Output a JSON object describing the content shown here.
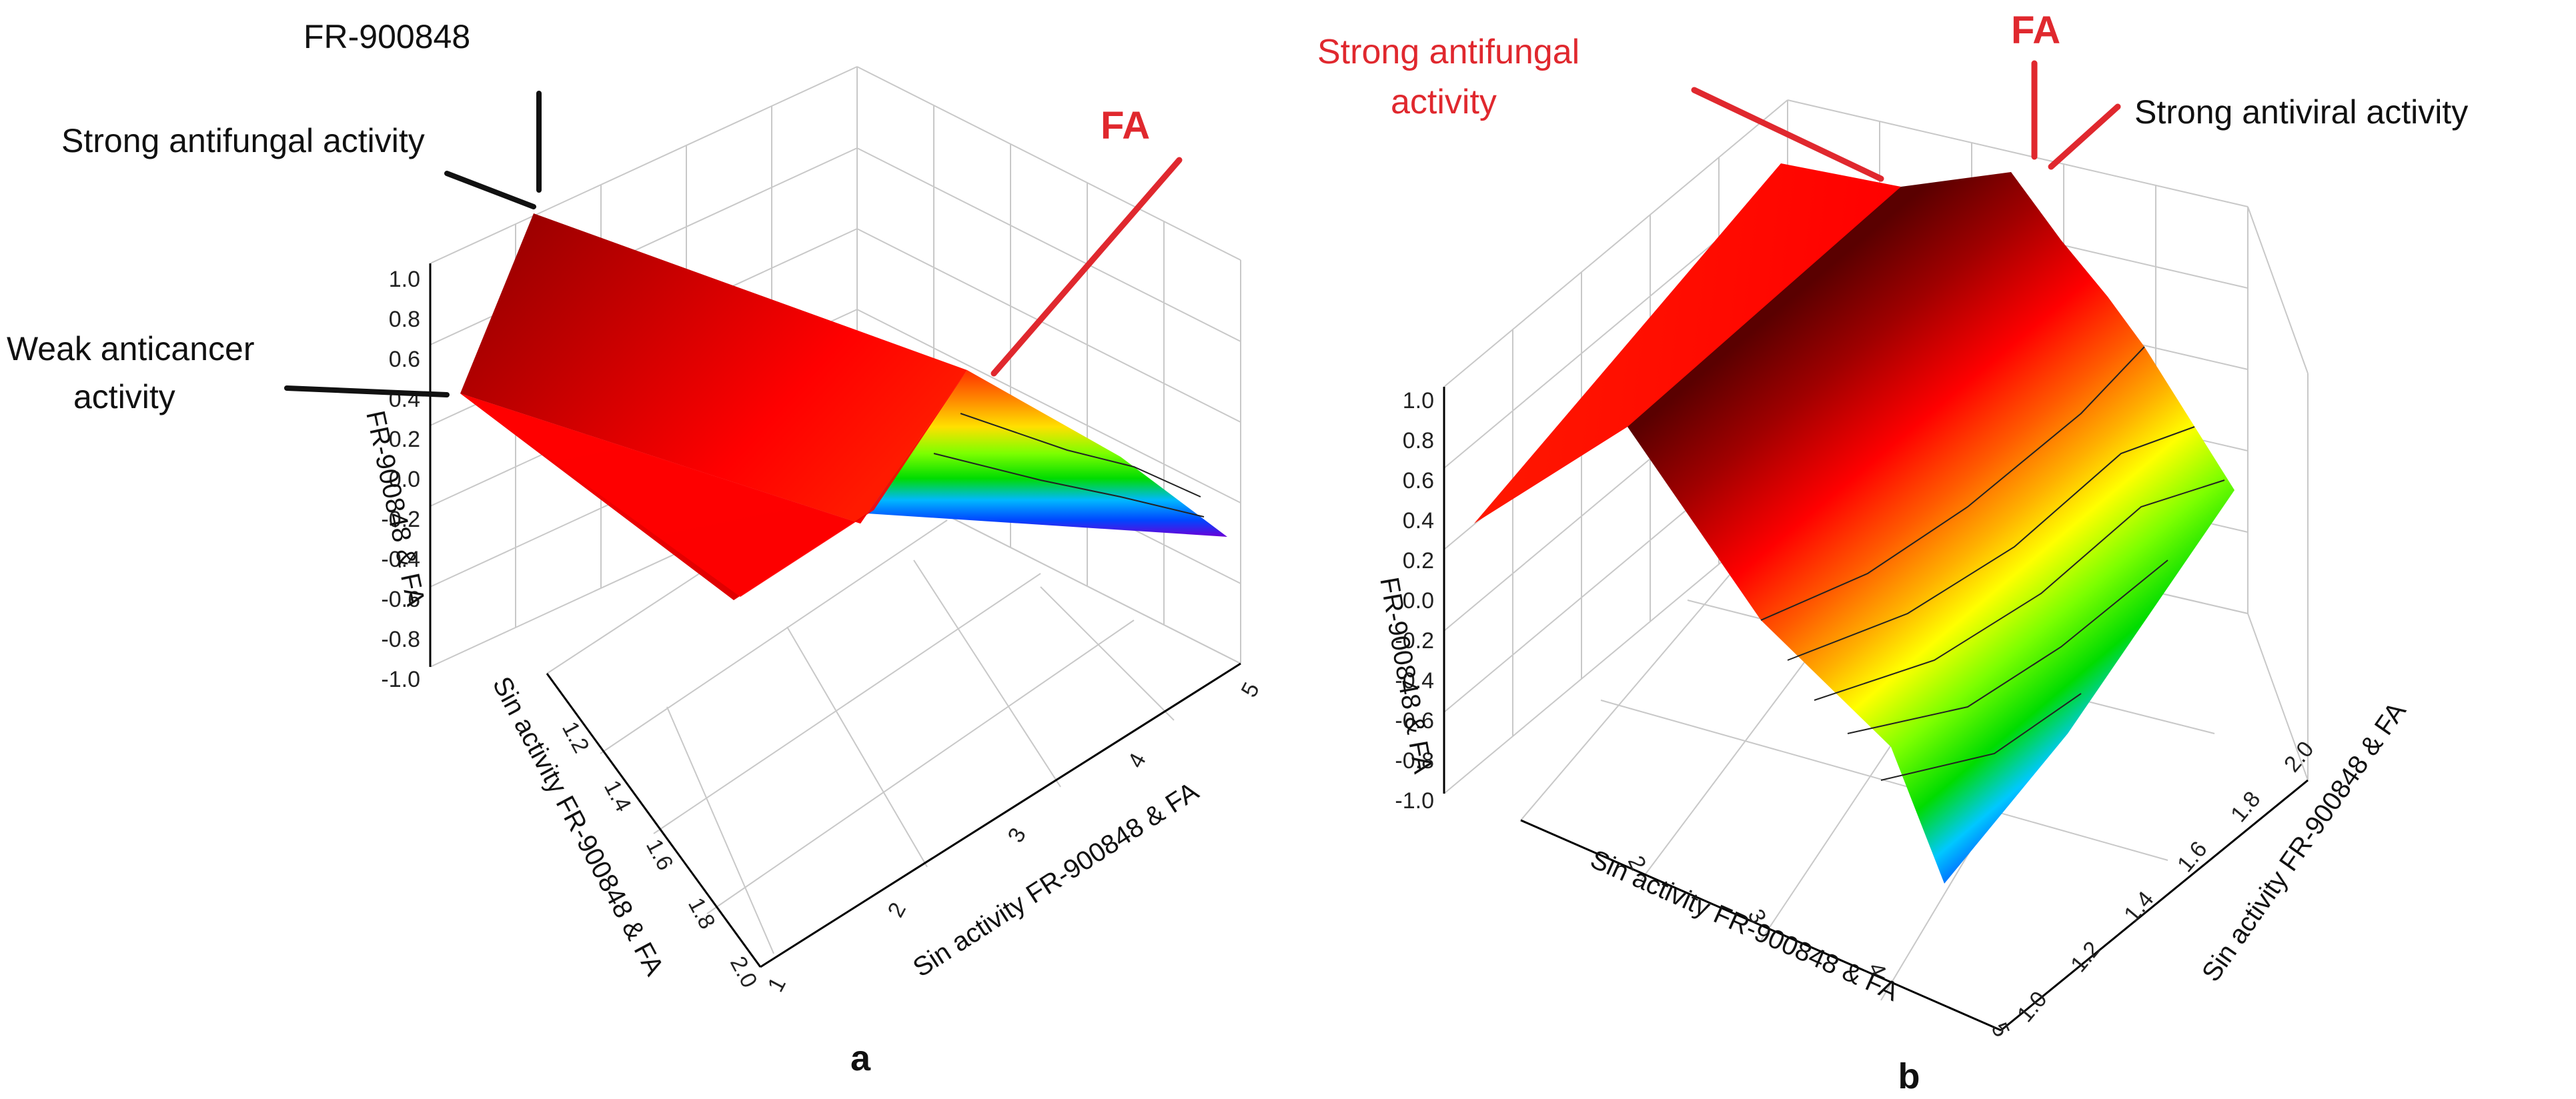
{
  "chart_data": [
    {
      "panel": "a",
      "type": "surface",
      "title": "",
      "xlabel": "Sin activity FR-900848 & FA",
      "ylabel": "Sin activity FR-900848 & FA",
      "zlabel": "FR-900848 & FA",
      "z_ticks": [
        "1.0",
        "0.8",
        "0.6",
        "0.4",
        "0.2",
        "0.0",
        "-0.2",
        "-0.4",
        "-0.6",
        "-0.8",
        "-1.0"
      ],
      "y_ticks": [
        "1.2",
        "1.4",
        "1.6",
        "1.8",
        "2.0"
      ],
      "x_ticks": [
        "1",
        "2",
        "3",
        "4",
        "5"
      ],
      "zlim": [
        -1.0,
        1.0
      ],
      "colormap": [
        "#5a0000",
        "#a30000",
        "#ff0000",
        "#ff5a00",
        "#ffa500",
        "#ffff00",
        "#7fff00",
        "#00e600",
        "#00c8ff",
        "#0050ff",
        "#6a00d8"
      ],
      "annotations": [
        {
          "text": "FR-900848",
          "style": "black"
        },
        {
          "text": "Strong antifungal activity",
          "style": "black"
        },
        {
          "text": "Weak anticancer",
          "style": "black"
        },
        {
          "text": "activity",
          "style": "black"
        },
        {
          "text": "FA",
          "style": "red-bold"
        }
      ]
    },
    {
      "panel": "b",
      "type": "surface",
      "title": "",
      "xlabel": "Sin activity FR-900848  & FA",
      "ylabel": "Sin activity FR-900848 & FA",
      "zlabel": "FR-900848 & FA",
      "z_ticks": [
        "1.0",
        "0.8",
        "0.6",
        "0.4",
        "0.2",
        "0.0",
        "-0.2",
        "-0.4",
        "-0.6",
        "-0.8",
        "-1.0"
      ],
      "y_ticks": [
        "1.0",
        "1.2",
        "1.4",
        "1.6",
        "1.8",
        "2.0"
      ],
      "x_ticks": [
        "2",
        "3",
        "4",
        "5"
      ],
      "zlim": [
        -1.0,
        1.0
      ],
      "annotations": [
        {
          "text": "Strong antifungal",
          "style": "red"
        },
        {
          "text": "activity",
          "style": "red"
        },
        {
          "text": "FA",
          "style": "red-bold"
        },
        {
          "text": "Strong antiviral activity",
          "style": "black"
        }
      ]
    }
  ],
  "panel_labels": [
    "a",
    "b"
  ]
}
